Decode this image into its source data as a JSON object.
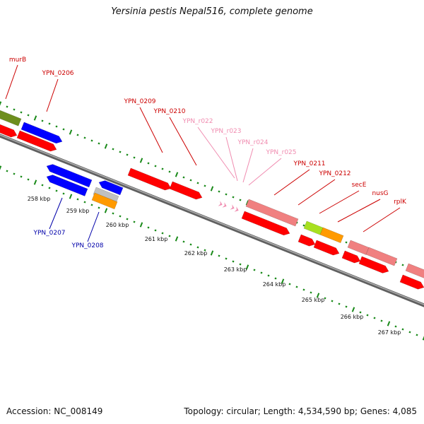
{
  "title": "Yersinia pestis Nepal516, complete genome",
  "footer": {
    "accession": "Accession: NC_008149",
    "summary": "Topology: circular; Length: 4,534,590 bp; Genes: 4,085"
  },
  "colors": {
    "forward_gene": "#ff0000",
    "reverse_gene": "#0000ff",
    "rna_label": "#f08cb0",
    "rrna_feature": "#f08080",
    "cds_olive": "#6e8e1e",
    "cds_lime": "#a8e020",
    "cds_orange": "#ff9a00",
    "cds_gray": "#c0c0c0",
    "backbone": "#808080",
    "tick_green": "#1a8a1a"
  },
  "scale_labels": [
    "258 kbp",
    "259 kbp",
    "260 kbp",
    "261 kbp",
    "262 kbp",
    "263 kbp",
    "264 kbp",
    "265 kbp",
    "266 kbp",
    "267 kbp"
  ],
  "gene_labels_top": [
    {
      "text": "murB",
      "color": "#cc0000"
    },
    {
      "text": "YPN_0206",
      "color": "#cc0000"
    },
    {
      "text": "YPN_0209",
      "color": "#cc0000"
    },
    {
      "text": "YPN_0210",
      "color": "#cc0000"
    },
    {
      "text": "YPN_r022",
      "color": "#f08cb0"
    },
    {
      "text": "YPN_r023",
      "color": "#f08cb0"
    },
    {
      "text": "YPN_r024",
      "color": "#f08cb0"
    },
    {
      "text": "YPN_r025",
      "color": "#f08cb0"
    },
    {
      "text": "YPN_0211",
      "color": "#cc0000"
    },
    {
      "text": "YPN_0212",
      "color": "#cc0000"
    },
    {
      "text": "secE",
      "color": "#cc0000"
    },
    {
      "text": "nusG",
      "color": "#cc0000"
    },
    {
      "text": "rplK",
      "color": "#cc0000"
    }
  ],
  "gene_labels_bottom": [
    {
      "text": "YPN_0207",
      "color": "#0000aa"
    },
    {
      "text": "YPN_0208",
      "color": "#0000aa"
    }
  ]
}
